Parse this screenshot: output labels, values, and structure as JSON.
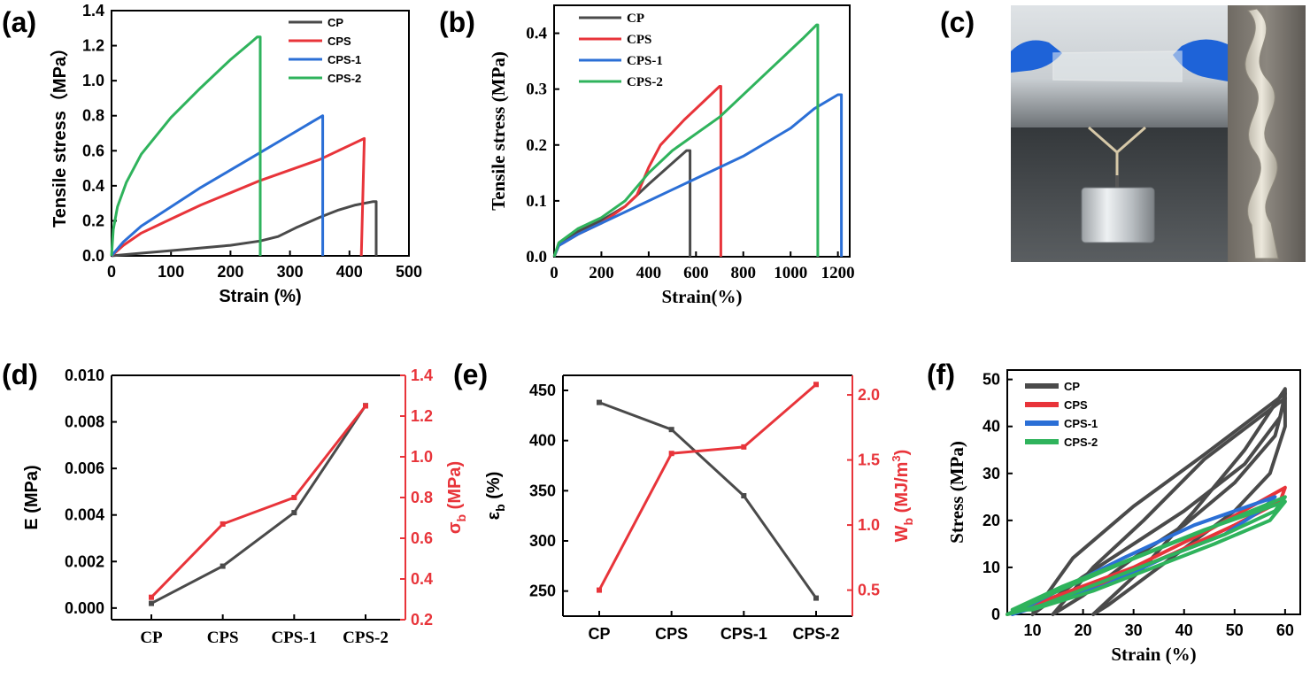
{
  "panels": {
    "a": "(a)",
    "b": "(b)",
    "c": "(c)",
    "d": "(d)",
    "e": "(e)",
    "f": "(f)"
  },
  "colors": {
    "CP": "#4a4a4a",
    "CPS": "#e8343a",
    "CPS-1": "#2b6fd6",
    "CPS-2": "#2fb35c"
  },
  "photo": {
    "description_icon": "photo-hydrogel-stretch-and-twist"
  },
  "chart_data": [
    {
      "id": "a",
      "type": "line",
      "xlabel": "Strain (%)",
      "ylabel": "Tensile stress（MPa）",
      "xlim": [
        0,
        500
      ],
      "ylim": [
        0,
        1.4
      ],
      "xticks": [
        "0",
        "100",
        "200",
        "300",
        "400",
        "500"
      ],
      "yticks": [
        "0.0",
        "0.2",
        "0.4",
        "0.6",
        "0.8",
        "1.0",
        "1.2",
        "1.4"
      ],
      "legend_position": "top-right",
      "series": [
        {
          "name": "CP",
          "points": [
            [
              0,
              0
            ],
            [
              50,
              0.015
            ],
            [
              100,
              0.03
            ],
            [
              150,
              0.045
            ],
            [
              200,
              0.06
            ],
            [
              250,
              0.085
            ],
            [
              280,
              0.11
            ],
            [
              310,
              0.16
            ],
            [
              350,
              0.22
            ],
            [
              380,
              0.26
            ],
            [
              410,
              0.29
            ],
            [
              440,
              0.31
            ],
            [
              445,
              0.31
            ],
            [
              445,
              0
            ]
          ]
        },
        {
          "name": "CPS",
          "points": [
            [
              0,
              0
            ],
            [
              20,
              0.06
            ],
            [
              50,
              0.13
            ],
            [
              100,
              0.21
            ],
            [
              150,
              0.29
            ],
            [
              200,
              0.36
            ],
            [
              250,
              0.43
            ],
            [
              300,
              0.49
            ],
            [
              350,
              0.55
            ],
            [
              400,
              0.63
            ],
            [
              425,
              0.67
            ],
            [
              420,
              0
            ]
          ]
        },
        {
          "name": "CPS-1",
          "points": [
            [
              0,
              0
            ],
            [
              20,
              0.08
            ],
            [
              50,
              0.17
            ],
            [
              100,
              0.28
            ],
            [
              150,
              0.39
            ],
            [
              200,
              0.49
            ],
            [
              250,
              0.59
            ],
            [
              300,
              0.69
            ],
            [
              340,
              0.77
            ],
            [
              355,
              0.8
            ],
            [
              355,
              0
            ]
          ]
        },
        {
          "name": "CPS-2",
          "points": [
            [
              0,
              0
            ],
            [
              3,
              0.15
            ],
            [
              10,
              0.28
            ],
            [
              25,
              0.42
            ],
            [
              50,
              0.58
            ],
            [
              100,
              0.79
            ],
            [
              150,
              0.96
            ],
            [
              200,
              1.12
            ],
            [
              235,
              1.22
            ],
            [
              245,
              1.25
            ],
            [
              250,
              1.25
            ],
            [
              250,
              0
            ]
          ]
        }
      ]
    },
    {
      "id": "b",
      "type": "line",
      "xlabel": "Strain(%)",
      "ylabel": "Tensile stress (MPa)",
      "xlim": [
        0,
        1250
      ],
      "ylim": [
        0,
        0.45
      ],
      "xticks": [
        "0",
        "200",
        "400",
        "600",
        "800",
        "1000",
        "1200"
      ],
      "xtick_values": [
        0,
        200,
        400,
        600,
        800,
        1000,
        1200
      ],
      "yticks": [
        "0.0",
        "0.1",
        "0.2",
        "0.3",
        "0.4"
      ],
      "legend_position": "top-left",
      "series": [
        {
          "name": "CP",
          "points": [
            [
              0,
              0
            ],
            [
              20,
              0.02
            ],
            [
              100,
              0.045
            ],
            [
              200,
              0.065
            ],
            [
              300,
              0.09
            ],
            [
              400,
              0.13
            ],
            [
              480,
              0.16
            ],
            [
              560,
              0.19
            ],
            [
              575,
              0.19
            ],
            [
              575,
              0
            ]
          ]
        },
        {
          "name": "CPS",
          "points": [
            [
              0,
              0
            ],
            [
              20,
              0.02
            ],
            [
              100,
              0.04
            ],
            [
              200,
              0.06
            ],
            [
              300,
              0.09
            ],
            [
              350,
              0.11
            ],
            [
              400,
              0.16
            ],
            [
              450,
              0.2
            ],
            [
              550,
              0.245
            ],
            [
              650,
              0.285
            ],
            [
              700,
              0.305
            ],
            [
              705,
              0.305
            ],
            [
              705,
              0
            ]
          ]
        },
        {
          "name": "CPS-1",
          "points": [
            [
              0,
              0
            ],
            [
              20,
              0.02
            ],
            [
              100,
              0.04
            ],
            [
              200,
              0.06
            ],
            [
              400,
              0.1
            ],
            [
              600,
              0.14
            ],
            [
              800,
              0.18
            ],
            [
              1000,
              0.23
            ],
            [
              1100,
              0.265
            ],
            [
              1200,
              0.29
            ],
            [
              1215,
              0.29
            ],
            [
              1215,
              0
            ]
          ]
        },
        {
          "name": "CPS-2",
          "points": [
            [
              0,
              0
            ],
            [
              20,
              0.025
            ],
            [
              100,
              0.05
            ],
            [
              200,
              0.07
            ],
            [
              300,
              0.1
            ],
            [
              400,
              0.15
            ],
            [
              500,
              0.19
            ],
            [
              700,
              0.25
            ],
            [
              900,
              0.33
            ],
            [
              1050,
              0.39
            ],
            [
              1110,
              0.415
            ],
            [
              1115,
              0.415
            ],
            [
              1115,
              0
            ]
          ]
        }
      ]
    },
    {
      "id": "d",
      "type": "line",
      "categories": [
        "CP",
        "CPS",
        "CPS-1",
        "CPS-2"
      ],
      "ylabel_left": "E (MPa)",
      "ylabel_right_main": "σ",
      "ylabel_right_sub": "b",
      "ylabel_right_unit": " (MPa)",
      "ylim_left": [
        -0.0005,
        0.01
      ],
      "ylim_right": [
        0.2,
        1.4
      ],
      "yticks_left": [
        "0.000",
        "0.002",
        "0.004",
        "0.006",
        "0.008",
        "0.010"
      ],
      "yticks_right": [
        "0.2",
        "0.4",
        "0.6",
        "0.8",
        "1.0",
        "1.2",
        "1.4"
      ],
      "series": [
        {
          "name": "E",
          "axis": "left",
          "values": [
            0.0002,
            0.0018,
            0.0041,
            0.0087
          ]
        },
        {
          "name": "σb",
          "axis": "right",
          "values": [
            0.31,
            0.67,
            0.8,
            1.25
          ]
        }
      ]
    },
    {
      "id": "e",
      "type": "line",
      "categories": [
        "CP",
        "CPS",
        "CPS-1",
        "CPS-2"
      ],
      "ylabel_left_main": "ε",
      "ylabel_left_sub": "b",
      "ylabel_left_unit": " (%)",
      "ylabel_right_main": "W",
      "ylabel_right_sub": "b",
      "ylabel_right_unit": " (MJ/m",
      "ylabel_right_sup": "3",
      "ylabel_right_close": ")",
      "ylim_left": [
        225,
        465
      ],
      "ylim_right": [
        0.3,
        2.15
      ],
      "yticks_left": [
        "250",
        "300",
        "350",
        "400",
        "450"
      ],
      "yticks_right": [
        "0.5",
        "1.0",
        "1.5",
        "2.0"
      ],
      "series": [
        {
          "name": "εb",
          "axis": "left",
          "values": [
            438,
            411,
            345,
            243
          ]
        },
        {
          "name": "Wb",
          "axis": "right",
          "values": [
            0.5,
            1.55,
            1.6,
            2.08
          ]
        }
      ]
    },
    {
      "id": "f",
      "type": "line",
      "xlabel": "Strain (%)",
      "ylabel": "Stress (MPa)",
      "xlim": [
        5,
        63
      ],
      "ylim": [
        0,
        52
      ],
      "xticks": [
        "10",
        "20",
        "30",
        "40",
        "50",
        "60"
      ],
      "yticks": [
        "0",
        "10",
        "20",
        "30",
        "40",
        "50"
      ],
      "legend_position": "top-left",
      "series": [
        {
          "name": "CP",
          "loops": [
            [
              [
                22,
                0
              ],
              [
                32,
                10
              ],
              [
                42,
                22
              ],
              [
                52,
                35
              ],
              [
                60,
                48
              ],
              [
                60,
                40
              ],
              [
                57,
                30
              ],
              [
                50,
                22
              ],
              [
                40,
                14
              ],
              [
                30,
                6
              ],
              [
                25,
                2
              ],
              [
                22,
                0
              ]
            ],
            [
              [
                14,
                0
              ],
              [
                22,
                10
              ],
              [
                32,
                20
              ],
              [
                44,
                33
              ],
              [
                60,
                46
              ],
              [
                58,
                38
              ],
              [
                50,
                28
              ],
              [
                40,
                19
              ],
              [
                30,
                12
              ],
              [
                20,
                4
              ],
              [
                14,
                0
              ]
            ],
            [
              [
                10,
                0
              ],
              [
                18,
                12
              ],
              [
                30,
                23
              ],
              [
                44,
                34
              ],
              [
                60,
                47
              ],
              [
                59,
                42
              ],
              [
                52,
                32
              ],
              [
                40,
                22
              ],
              [
                30,
                15
              ],
              [
                20,
                8
              ],
              [
                10,
                0
              ]
            ]
          ]
        },
        {
          "name": "CPS",
          "loops": [
            [
              [
                5,
                0
              ],
              [
                15,
                4
              ],
              [
                30,
                10
              ],
              [
                45,
                18
              ],
              [
                60,
                27
              ],
              [
                59,
                24
              ],
              [
                50,
                19
              ],
              [
                38,
                13
              ],
              [
                25,
                7
              ],
              [
                12,
                2
              ],
              [
                5,
                0
              ]
            ]
          ]
        },
        {
          "name": "CPS-1",
          "loops": [
            [
              [
                6,
                0
              ],
              [
                15,
                5
              ],
              [
                28,
                12
              ],
              [
                42,
                19
              ],
              [
                58,
                25
              ],
              [
                55,
                22
              ],
              [
                48,
                17
              ],
              [
                36,
                12
              ],
              [
                24,
                6
              ],
              [
                12,
                2
              ],
              [
                6,
                0
              ]
            ]
          ]
        },
        {
          "name": "CPS-2",
          "loops": [
            [
              [
                5,
                0
              ],
              [
                15,
                5
              ],
              [
                28,
                11
              ],
              [
                42,
                17
              ],
              [
                60,
                25
              ],
              [
                58,
                22
              ],
              [
                48,
                17
              ],
              [
                36,
                12
              ],
              [
                24,
                7
              ],
              [
                12,
                2
              ],
              [
                5,
                0
              ]
            ],
            [
              [
                6,
                1
              ],
              [
                16,
                6
              ],
              [
                30,
                12
              ],
              [
                44,
                18
              ],
              [
                60,
                24
              ],
              [
                57,
                20
              ],
              [
                46,
                15
              ],
              [
                34,
                10
              ],
              [
                22,
                5
              ],
              [
                10,
                1
              ],
              [
                6,
                1
              ]
            ]
          ]
        }
      ]
    }
  ]
}
